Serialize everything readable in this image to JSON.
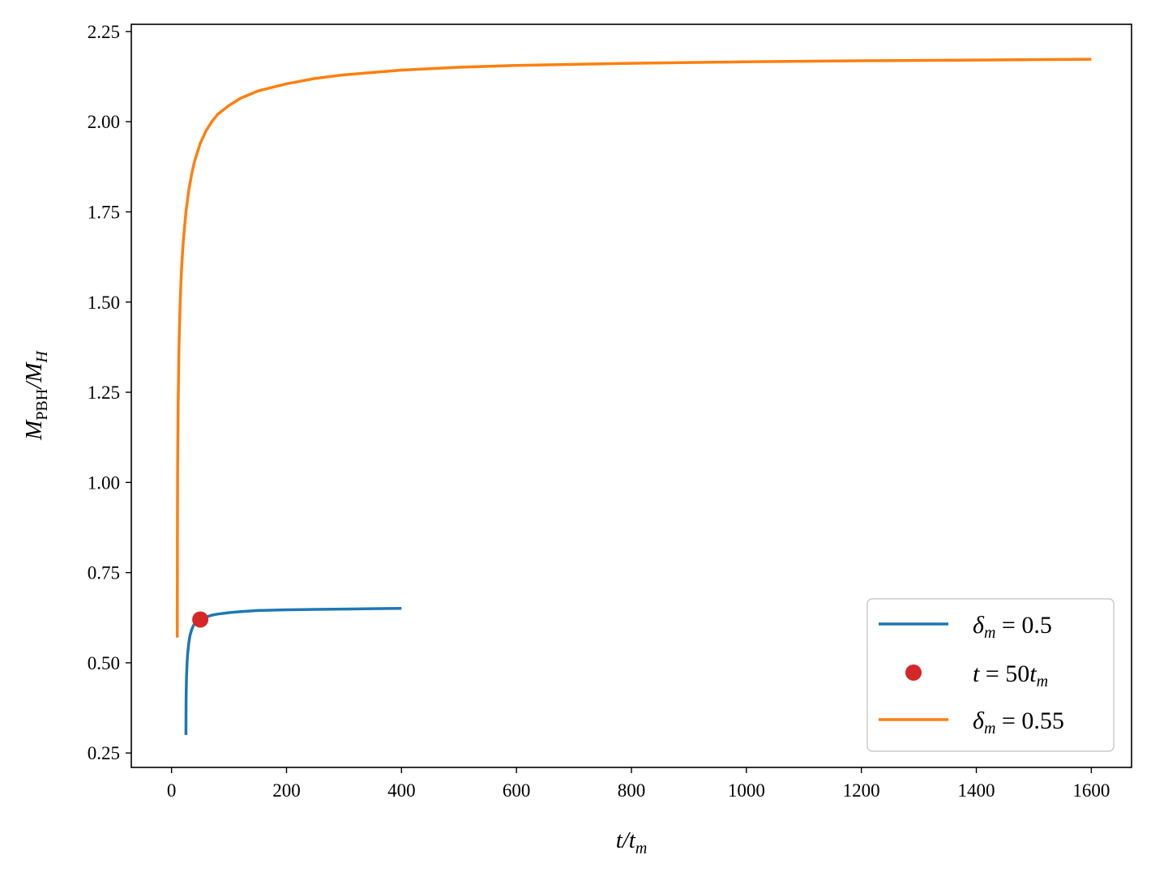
{
  "chart_data": {
    "type": "line",
    "title": "",
    "xlabel": {
      "main": "t/t",
      "sub": "m"
    },
    "ylabel": {
      "main": "M",
      "sub1": "PBH",
      "mid": "/M",
      "sub2": "H"
    },
    "xlim": [
      -70,
      1670
    ],
    "ylim": [
      0.21,
      2.27
    ],
    "xticks": [
      0,
      200,
      400,
      600,
      800,
      1000,
      1200,
      1400,
      1600
    ],
    "xtick_labels": [
      "0",
      "200",
      "400",
      "600",
      "800",
      "1000",
      "1200",
      "1400",
      "1600"
    ],
    "yticks": [
      0.25,
      0.5,
      0.75,
      1.0,
      1.25,
      1.5,
      1.75,
      2.0,
      2.25
    ],
    "ytick_labels": [
      "0.25",
      "0.50",
      "0.75",
      "1.00",
      "1.25",
      "1.50",
      "1.75",
      "2.00",
      "2.25"
    ],
    "grid": false,
    "legend_position": "lower-right",
    "series": [
      {
        "name": "δm = 0.5",
        "legend": {
          "base": "δ",
          "sub": "m",
          "rest": " = 0.5"
        },
        "kind": "line",
        "color": "#1f77b4",
        "x": [
          25,
          25.3,
          26,
          27,
          28,
          30,
          32,
          35,
          38,
          42,
          46,
          50,
          55,
          60,
          70,
          80,
          100,
          120,
          150,
          200,
          250,
          300,
          350,
          400
        ],
        "y": [
          0.3,
          0.4,
          0.46,
          0.5,
          0.525,
          0.555,
          0.575,
          0.592,
          0.603,
          0.612,
          0.617,
          0.62,
          0.624,
          0.627,
          0.632,
          0.635,
          0.639,
          0.642,
          0.645,
          0.647,
          0.648,
          0.649,
          0.65,
          0.651
        ]
      },
      {
        "name": "t = 50tm",
        "legend": {
          "base": "t",
          "rest": " = 50",
          "base2": "t",
          "sub": "m"
        },
        "kind": "marker",
        "color": "#d62728",
        "x": [
          50
        ],
        "y": [
          0.62
        ]
      },
      {
        "name": "δm = 0.55",
        "legend": {
          "base": "δ",
          "sub": "m",
          "rest": " = 0.55"
        },
        "kind": "line",
        "color": "#ff7f0e",
        "x": [
          10,
          10.2,
          10.6,
          11.5,
          13,
          15,
          17,
          20,
          25,
          30,
          35,
          40,
          50,
          60,
          70,
          80,
          100,
          120,
          150,
          200,
          250,
          300,
          400,
          500,
          600,
          800,
          1000,
          1200,
          1400,
          1600
        ],
        "y": [
          0.57,
          0.85,
          1.05,
          1.22,
          1.38,
          1.5,
          1.58,
          1.66,
          1.75,
          1.81,
          1.855,
          1.89,
          1.94,
          1.975,
          2.0,
          2.02,
          2.045,
          2.065,
          2.085,
          2.105,
          2.12,
          2.13,
          2.143,
          2.151,
          2.156,
          2.162,
          2.166,
          2.169,
          2.171,
          2.173
        ]
      }
    ]
  }
}
